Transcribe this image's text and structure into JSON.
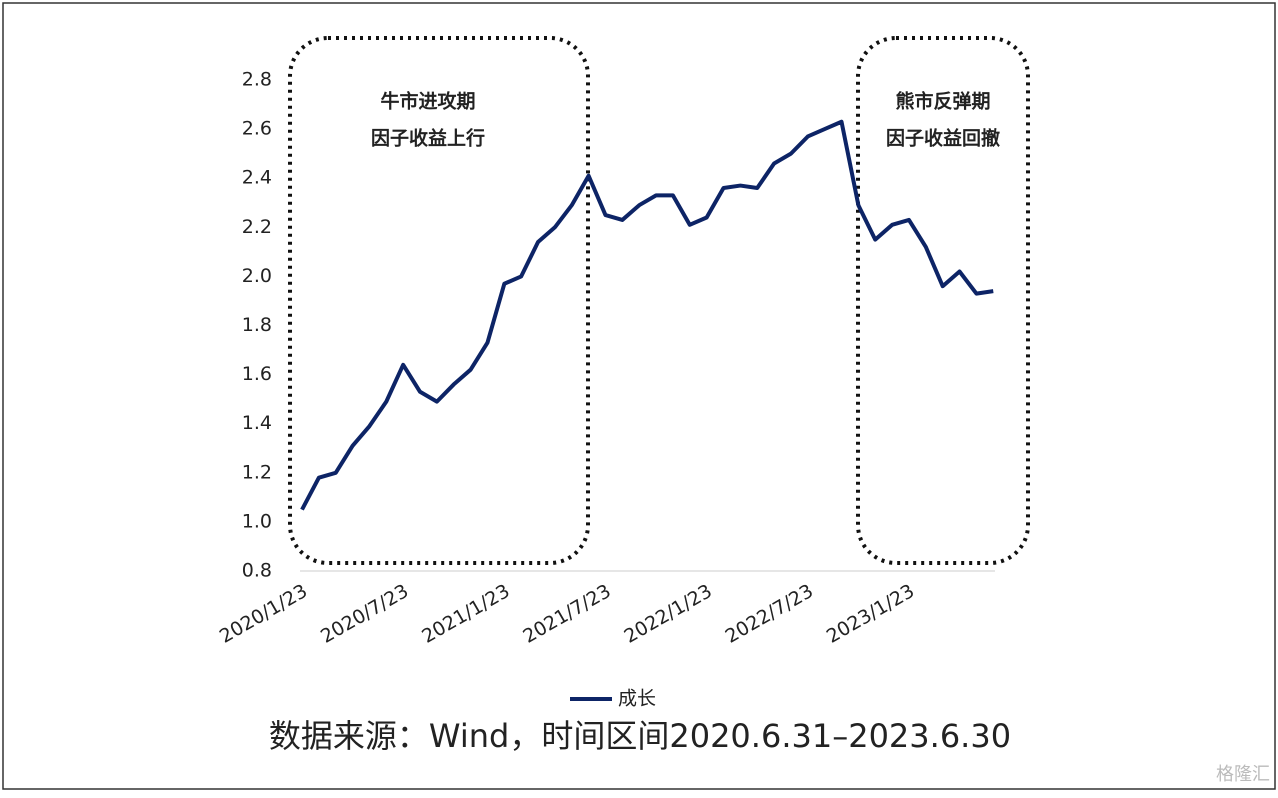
{
  "chart_data": {
    "type": "line",
    "categories": [
      "2020/1/23",
      null,
      null,
      null,
      null,
      null,
      "2020/7/23",
      null,
      null,
      null,
      null,
      null,
      "2021/1/23",
      null,
      null,
      null,
      null,
      null,
      "2021/7/23",
      null,
      null,
      null,
      null,
      null,
      "2022/1/23",
      null,
      null,
      null,
      null,
      null,
      "2022/7/23",
      null,
      null,
      null,
      null,
      null,
      "2023/1/23",
      null,
      null,
      null,
      null,
      null
    ],
    "series": [
      {
        "name": "成长",
        "color": "#0d2466",
        "values": [
          1.05,
          1.18,
          1.2,
          1.31,
          1.39,
          1.49,
          1.64,
          1.53,
          1.49,
          1.56,
          1.62,
          1.73,
          1.97,
          2.0,
          2.14,
          2.2,
          2.29,
          2.41,
          2.25,
          2.23,
          2.29,
          2.33,
          2.33,
          2.21,
          2.24,
          2.36,
          2.37,
          2.36,
          2.46,
          2.5,
          2.57,
          2.6,
          2.63,
          2.29,
          2.15,
          2.21,
          2.23,
          2.12,
          1.96,
          2.02,
          1.93,
          1.94
        ]
      }
    ],
    "ylim": [
      0.8,
      2.8
    ],
    "yticks": [
      {
        "value": 0.8,
        "label": "0.8"
      },
      {
        "value": 1,
        "label": "1.0"
      },
      1.2,
      1.4,
      1.6,
      1.8,
      {
        "value": 2,
        "label": "2.0"
      },
      2.2,
      2.4,
      2.6,
      2.8
    ],
    "annotations": [
      [
        "牛市进攻期",
        "因子收益上行"
      ],
      [
        "熊市反弹期",
        "因子收益回撤"
      ]
    ],
    "source": "数据来源：Wind，时间区间2020.6.31–2023.6.30",
    "watermark": "格隆汇",
    "legend": "bottom"
  }
}
